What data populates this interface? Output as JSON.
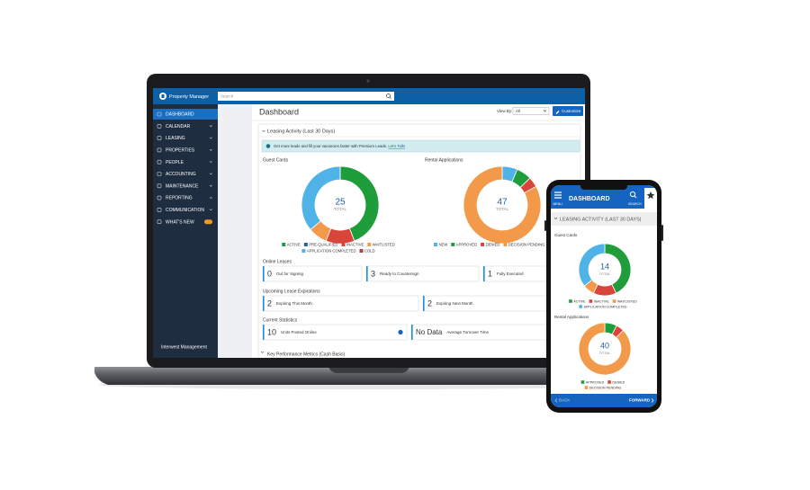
{
  "laptop": {
    "app_name": "Property Manager",
    "search_placeholder": "Search",
    "nav": [
      "DASHBOARD",
      "CALENDAR",
      "LEASING",
      "PROPERTIES",
      "PEOPLE",
      "ACCOUNTING",
      "MAINTENANCE",
      "REPORTING",
      "COMMUNICATION",
      "WHAT'S NEW"
    ],
    "company": "Interwest Management",
    "page_title": "Dashboard",
    "view_by_label": "View By:",
    "view_by_value": "All",
    "customize": "Customize",
    "section": "Leasing Activity (Last 30 Days)",
    "banner": "Get more leads and fill your vacancies faster with Premium Leads.",
    "banner_link": "Let's Talk!",
    "stats": [
      {
        "title": "Online Leases",
        "items": [
          {
            "value": 0,
            "label": "Out for Signing"
          },
          {
            "value": 3,
            "label": "Ready to Countersign"
          },
          {
            "value": 1,
            "label": "Fully Executed"
          }
        ]
      },
      {
        "title": "Upcoming Lease Expirations",
        "items": [
          {
            "value": 2,
            "label": "Expiring This Month"
          },
          {
            "value": 2,
            "label": "Expiring Next Month"
          }
        ]
      },
      {
        "title": "Current Statistics",
        "items": [
          {
            "value": 10,
            "label": "Units Posted Online"
          },
          {
            "value": "No Data",
            "label": "Average Turnover Time"
          }
        ]
      }
    ],
    "next_section": "Key Performance Metrics (Cash Basis)"
  },
  "phone": {
    "title": "DASHBOARD",
    "menu": "MENU",
    "search": "SEARCH",
    "section": "LEASING ACTIVITY (LAST 30 DAYS)",
    "back": "BACK",
    "forward": "FORWARD"
  },
  "chart_data": [
    {
      "type": "donut",
      "title": "Guest Cards",
      "total": 25,
      "total_label": "TOTAL",
      "categories": [
        "ACTIVE",
        "PRE-QUALIFIED",
        "INACTIVE",
        "WAITLISTED",
        "APPLICATION COMPLETED",
        "COLD"
      ],
      "values": [
        11,
        0,
        3,
        2,
        9,
        0
      ],
      "colors": [
        "#1f9d3a",
        "#2c5fa8",
        "#d9453a",
        "#f39a4a",
        "#4fb3e8",
        "#b0413e"
      ]
    },
    {
      "type": "donut",
      "title": "Rental Applications",
      "total": 47,
      "total_label": "TOTAL",
      "categories": [
        "NEW",
        "APPROVED",
        "DENIED",
        "DECISION PENDING"
      ],
      "values": [
        3,
        3,
        2,
        39
      ],
      "colors": [
        "#4fb3e8",
        "#1f9d3a",
        "#d9453a",
        "#f39a4a"
      ]
    },
    {
      "type": "donut",
      "title": "Guest Cards",
      "total": 14,
      "total_label": "TOTAL",
      "categories": [
        "ACTIVE",
        "INACTIVE",
        "WAITLISTED",
        "APPLICATION COMPLETED"
      ],
      "values": [
        6,
        2,
        1,
        5
      ],
      "colors": [
        "#1f9d3a",
        "#d9453a",
        "#f39a4a",
        "#4fb3e8"
      ]
    },
    {
      "type": "donut",
      "title": "Rental Applications",
      "total": 40,
      "total_label": "TOTAL",
      "categories": [
        "APPROVED",
        "DENIED",
        "DECISION PENDING"
      ],
      "values": [
        3,
        2,
        35
      ],
      "colors": [
        "#1f9d3a",
        "#d9453a",
        "#f39a4a"
      ]
    }
  ]
}
